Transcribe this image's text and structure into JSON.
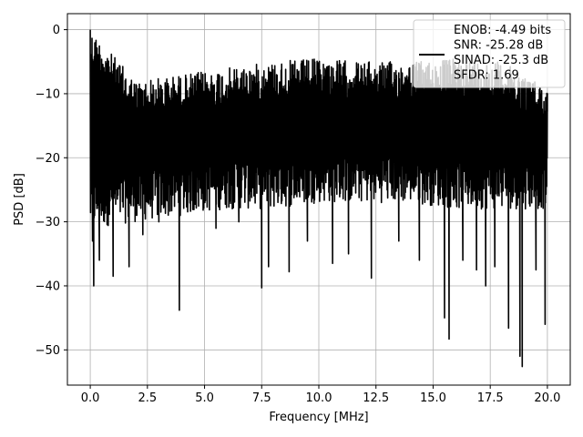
{
  "chart_data": {
    "type": "line",
    "xlabel": "Frequency [MHz]",
    "ylabel": "PSD [dB]",
    "xlim": [
      -1.0,
      21.0
    ],
    "ylim": [
      -55.5,
      2.5
    ],
    "x_ticks": [
      0.0,
      2.5,
      5.0,
      7.5,
      10.0,
      12.5,
      15.0,
      17.5,
      20.0
    ],
    "x_tick_labels": [
      "0.0",
      "2.5",
      "5.0",
      "7.5",
      "10.0",
      "12.5",
      "15.0",
      "17.5",
      "20.0"
    ],
    "y_ticks": [
      0,
      -10,
      -20,
      -30,
      -40,
      -50
    ],
    "y_tick_labels": [
      "0",
      "−10",
      "−20",
      "−30",
      "−40",
      "−50"
    ],
    "grid": true,
    "legend_position": "top-right",
    "series": [
      {
        "name": "ENOB: -4.49 bits\nSNR: -25.28 dB\nSINAD: -25.3 dB\nSFDR: 1.69",
        "color": "#000000",
        "noise_floor_envelope": {
          "x": [
            0.0,
            2.0,
            4.0,
            6.0,
            8.0,
            10.0,
            12.0,
            14.0,
            16.0,
            18.0,
            20.0
          ],
          "upper": [
            0.0,
            -8.0,
            -7.0,
            -6.0,
            -5.0,
            -4.5,
            -5.0,
            -5.0,
            -4.5,
            -5.0,
            -9.0
          ],
          "lower": [
            -31.0,
            -30.0,
            -29.0,
            -28.0,
            -28.0,
            -27.0,
            -27.0,
            -27.0,
            -28.0,
            -28.0,
            -28.0
          ]
        },
        "points": [
          {
            "x": 0.0,
            "y": 0.0
          },
          {
            "x": 0.05,
            "y": -8.0
          },
          {
            "x": 0.1,
            "y": -33.0
          },
          {
            "x": 0.15,
            "y": -40.0
          },
          {
            "x": 0.4,
            "y": -36.0
          },
          {
            "x": 1.0,
            "y": -38.5
          },
          {
            "x": 1.7,
            "y": -37.0
          },
          {
            "x": 2.3,
            "y": -32.0
          },
          {
            "x": 3.0,
            "y": -30.0
          },
          {
            "x": 3.9,
            "y": -43.8
          },
          {
            "x": 4.5,
            "y": -28.0
          },
          {
            "x": 5.5,
            "y": -31.0
          },
          {
            "x": 6.5,
            "y": -30.0
          },
          {
            "x": 7.5,
            "y": -40.3
          },
          {
            "x": 7.8,
            "y": -37.0
          },
          {
            "x": 8.7,
            "y": -37.8
          },
          {
            "x": 9.5,
            "y": -33.0
          },
          {
            "x": 10.6,
            "y": -36.5
          },
          {
            "x": 11.3,
            "y": -35.0
          },
          {
            "x": 12.3,
            "y": -38.8
          },
          {
            "x": 13.5,
            "y": -33.0
          },
          {
            "x": 14.4,
            "y": -36.0
          },
          {
            "x": 15.5,
            "y": -45.0
          },
          {
            "x": 15.7,
            "y": -48.3
          },
          {
            "x": 16.3,
            "y": -36.0
          },
          {
            "x": 16.9,
            "y": -37.5
          },
          {
            "x": 17.3,
            "y": -40.0
          },
          {
            "x": 17.7,
            "y": -37.0
          },
          {
            "x": 18.3,
            "y": -46.6
          },
          {
            "x": 18.8,
            "y": -51.0
          },
          {
            "x": 18.9,
            "y": -52.6
          },
          {
            "x": 19.5,
            "y": -37.5
          },
          {
            "x": 19.9,
            "y": -46.0
          },
          {
            "x": 20.0,
            "y": -10.0
          }
        ]
      }
    ],
    "legend": {
      "lines": [
        "ENOB: -4.49 bits",
        "SNR: -25.28 dB",
        "SINAD: -25.3 dB",
        "SFDR: 1.69"
      ]
    }
  }
}
